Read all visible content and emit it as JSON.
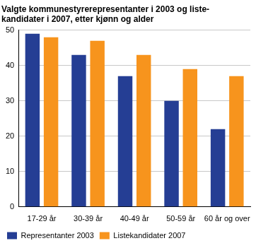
{
  "chart_data": {
    "type": "bar",
    "title": [
      "Valgte kommunestyrerepresentanter i 2003 og liste-",
      "kandidater i 2007, etter kjønn og alder"
    ],
    "categories": [
      "17-29 år",
      "30-39 år",
      "40-49 år",
      "50-59 år",
      "60 år og over"
    ],
    "series": [
      {
        "name": "Representanter 2003",
        "color": "#253e94",
        "values": [
          49,
          43,
          37,
          30,
          22
        ]
      },
      {
        "name": "Listekandidater 2007",
        "color": "#f7941d",
        "values": [
          48,
          47,
          43,
          39,
          37
        ]
      }
    ],
    "ylim": [
      0,
      50
    ],
    "yticks": [
      0,
      10,
      20,
      30,
      40,
      50
    ],
    "grid": true,
    "legend": "bottom"
  }
}
